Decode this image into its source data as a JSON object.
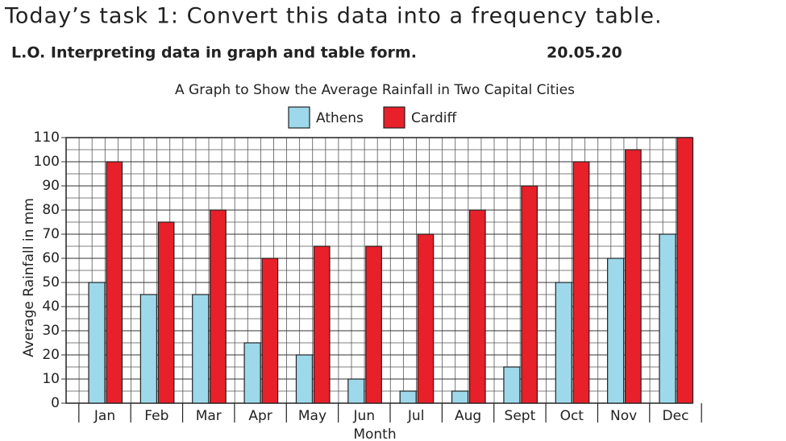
{
  "header": {
    "task": "Today’s task 1: Convert this data into a frequency table.",
    "objective": "L.O. Interpreting data in graph and table form.",
    "date": "20.05.20"
  },
  "chart_data": {
    "type": "bar",
    "title": "A Graph to Show the Average Rainfall in Two Capital Cities",
    "x_label": "Month",
    "y_label": "Average Rainfall in mm",
    "categories": [
      "Jan",
      "Feb",
      "Mar",
      "Apr",
      "May",
      "Jun",
      "Jul",
      "Aug",
      "Sept",
      "Oct",
      "Nov",
      "Dec"
    ],
    "series": [
      {
        "name": "Athens",
        "color": "#9dd9ea",
        "values": [
          50,
          45,
          45,
          25,
          20,
          10,
          5,
          5,
          15,
          50,
          60,
          70
        ]
      },
      {
        "name": "Cardiff",
        "color": "#e8202a",
        "values": [
          100,
          75,
          80,
          60,
          65,
          65,
          70,
          80,
          90,
          100,
          105,
          110
        ]
      }
    ],
    "ylim": [
      0,
      110
    ],
    "yticks": [
      0,
      10,
      20,
      30,
      40,
      50,
      60,
      70,
      80,
      90,
      100,
      110
    ],
    "grid": true,
    "legend": "top"
  }
}
